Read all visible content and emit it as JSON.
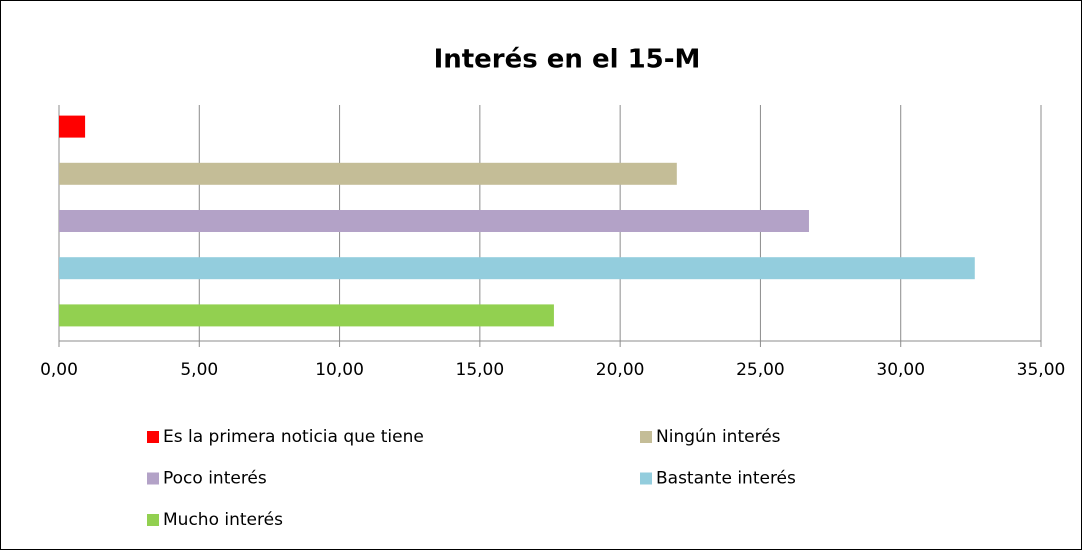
{
  "chart_data": {
    "type": "bar",
    "orientation": "horizontal",
    "title": "Interés en el 15-M",
    "series": [
      {
        "name": "Es la primera noticia que tiene",
        "color": "#ff0000",
        "values": [
          0.93
        ]
      },
      {
        "name": "Ningún interés",
        "color": "#c4bd97",
        "values": [
          22.02
        ]
      },
      {
        "name": "Poco interés",
        "color": "#b3a2c7",
        "values": [
          26.73
        ]
      },
      {
        "name": "Bastante interés",
        "color": "#93cddd",
        "values": [
          32.64
        ]
      },
      {
        "name": "Mucho interés",
        "color": "#92d050",
        "values": [
          17.64
        ]
      }
    ],
    "xlim": [
      0,
      35
    ],
    "xticks": [
      {
        "value": 0,
        "label": "0,00"
      },
      {
        "value": 5,
        "label": "5,00"
      },
      {
        "value": 10,
        "label": "10,00"
      },
      {
        "value": 15,
        "label": "15,00"
      },
      {
        "value": 20,
        "label": "20,00"
      },
      {
        "value": 25,
        "label": "25,00"
      },
      {
        "value": 30,
        "label": "30,00"
      },
      {
        "value": 35,
        "label": "35,00"
      }
    ],
    "grid": true,
    "legend": "bottom"
  }
}
